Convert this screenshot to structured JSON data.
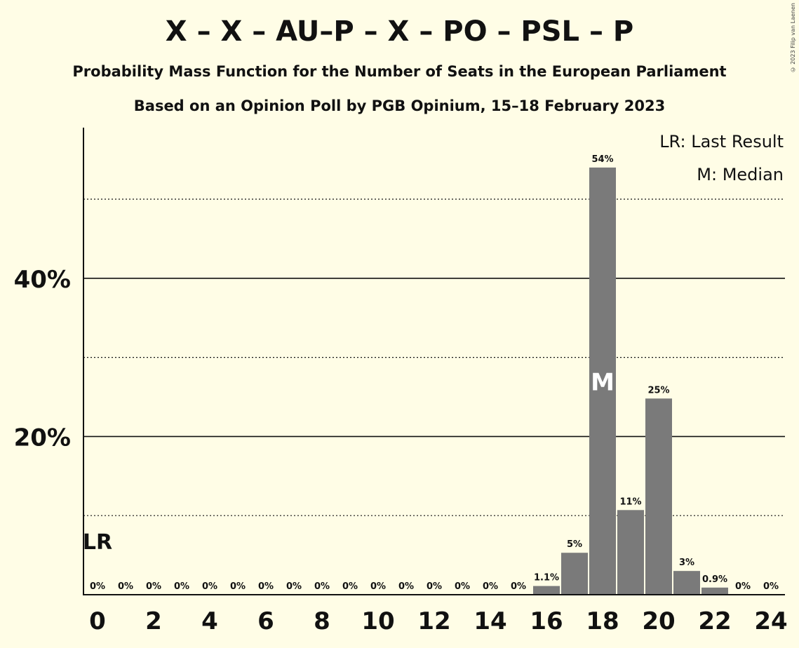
{
  "title": "X – X – AU–P – X – PO – PSL – P",
  "subtitle_1": "Probability Mass Function for the Number of Seats in the European Parliament",
  "subtitle_2": "Based on an Opinion Poll by PGB Opinium, 15–18 February 2023",
  "copyright": "© 2023 Filip van Laenen",
  "legend": {
    "last_result": "LR: Last Result",
    "median": "M: Median"
  },
  "markers": {
    "last_result_label": "LR",
    "last_result_seat": 0,
    "median_label": "M",
    "median_seat": 18
  },
  "colors": {
    "background": "#fffde6",
    "bar": "#7a7a7a"
  },
  "chart_data": {
    "type": "bar",
    "title": "X – X – AU–P – X – PO – PSL – P",
    "xlabel": "",
    "ylabel": "",
    "x": [
      0,
      1,
      2,
      3,
      4,
      5,
      6,
      7,
      8,
      9,
      10,
      11,
      12,
      13,
      14,
      15,
      16,
      17,
      18,
      19,
      20,
      21,
      22,
      23,
      24
    ],
    "values": [
      0,
      0,
      0,
      0,
      0,
      0,
      0,
      0,
      0,
      0,
      0,
      0,
      0,
      0,
      0,
      0,
      1.1,
      5.3,
      54,
      10.7,
      24.8,
      3,
      0.9,
      0,
      0
    ],
    "value_labels": [
      "0%",
      "0%",
      "0%",
      "0%",
      "0%",
      "0%",
      "0%",
      "0%",
      "0%",
      "0%",
      "0%",
      "0%",
      "0%",
      "0%",
      "0%",
      "0%",
      "1.1%",
      "5%",
      "54%",
      "11%",
      "25%",
      "3%",
      "0.9%",
      "0%",
      "0%"
    ],
    "x_tick_labels": [
      "0",
      "2",
      "4",
      "6",
      "8",
      "10",
      "12",
      "14",
      "16",
      "18",
      "20",
      "22",
      "24"
    ],
    "y_tick_labels": [
      "20%",
      "40%"
    ],
    "y_ticks": [
      20,
      40
    ],
    "y_minor_gridlines": [
      10,
      30,
      50
    ],
    "ylim": [
      0,
      59
    ],
    "legend_position": "top-right",
    "grid": true
  }
}
